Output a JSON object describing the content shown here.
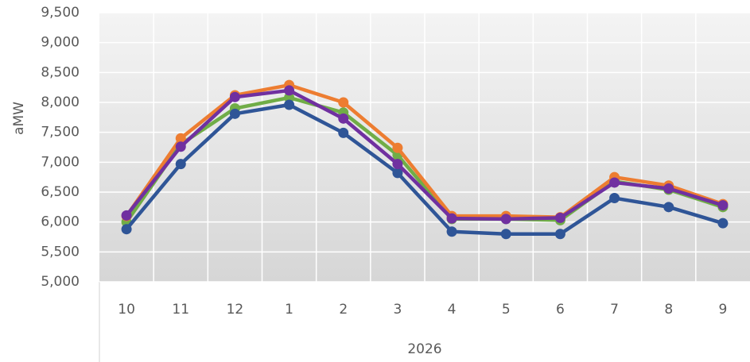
{
  "chart_data": {
    "type": "line",
    "y_label": "aMW",
    "x_label": "2026",
    "categories": [
      "10",
      "11",
      "12",
      "1",
      "2",
      "3",
      "4",
      "5",
      "6",
      "7",
      "8",
      "9"
    ],
    "series": [
      {
        "color": "#70ad47",
        "values": [
          6000,
          7300,
          7900,
          8080,
          7830,
          7120,
          6050,
          6050,
          6030,
          6680,
          6540,
          6250
        ]
      },
      {
        "color": "#ed7d31",
        "values": [
          6100,
          7400,
          8120,
          8290,
          8000,
          7240,
          6100,
          6100,
          6080,
          6750,
          6610,
          6300
        ]
      },
      {
        "color": "#2f5597",
        "values": [
          5880,
          6970,
          7810,
          7960,
          7490,
          6820,
          5840,
          5800,
          5800,
          6400,
          6250,
          5980
        ]
      },
      {
        "color": "#7030a0",
        "values": [
          6110,
          7260,
          8090,
          8200,
          7730,
          6970,
          6060,
          6050,
          6070,
          6660,
          6560,
          6280
        ]
      }
    ],
    "ylim": [
      5000,
      9500
    ],
    "yticks": [
      {
        "value": 5000,
        "label": "5,000"
      },
      {
        "value": 5500,
        "label": "5,500"
      },
      {
        "value": 6000,
        "label": "6,000"
      },
      {
        "value": 6500,
        "label": "6,500"
      },
      {
        "value": 7000,
        "label": "7,000"
      },
      {
        "value": 7500,
        "label": "7,500"
      },
      {
        "value": 8000,
        "label": "8,000"
      },
      {
        "value": 8500,
        "label": "8,500"
      },
      {
        "value": 9000,
        "label": "9,000"
      },
      {
        "value": 9500,
        "label": "9,500"
      }
    ],
    "grid": true
  }
}
